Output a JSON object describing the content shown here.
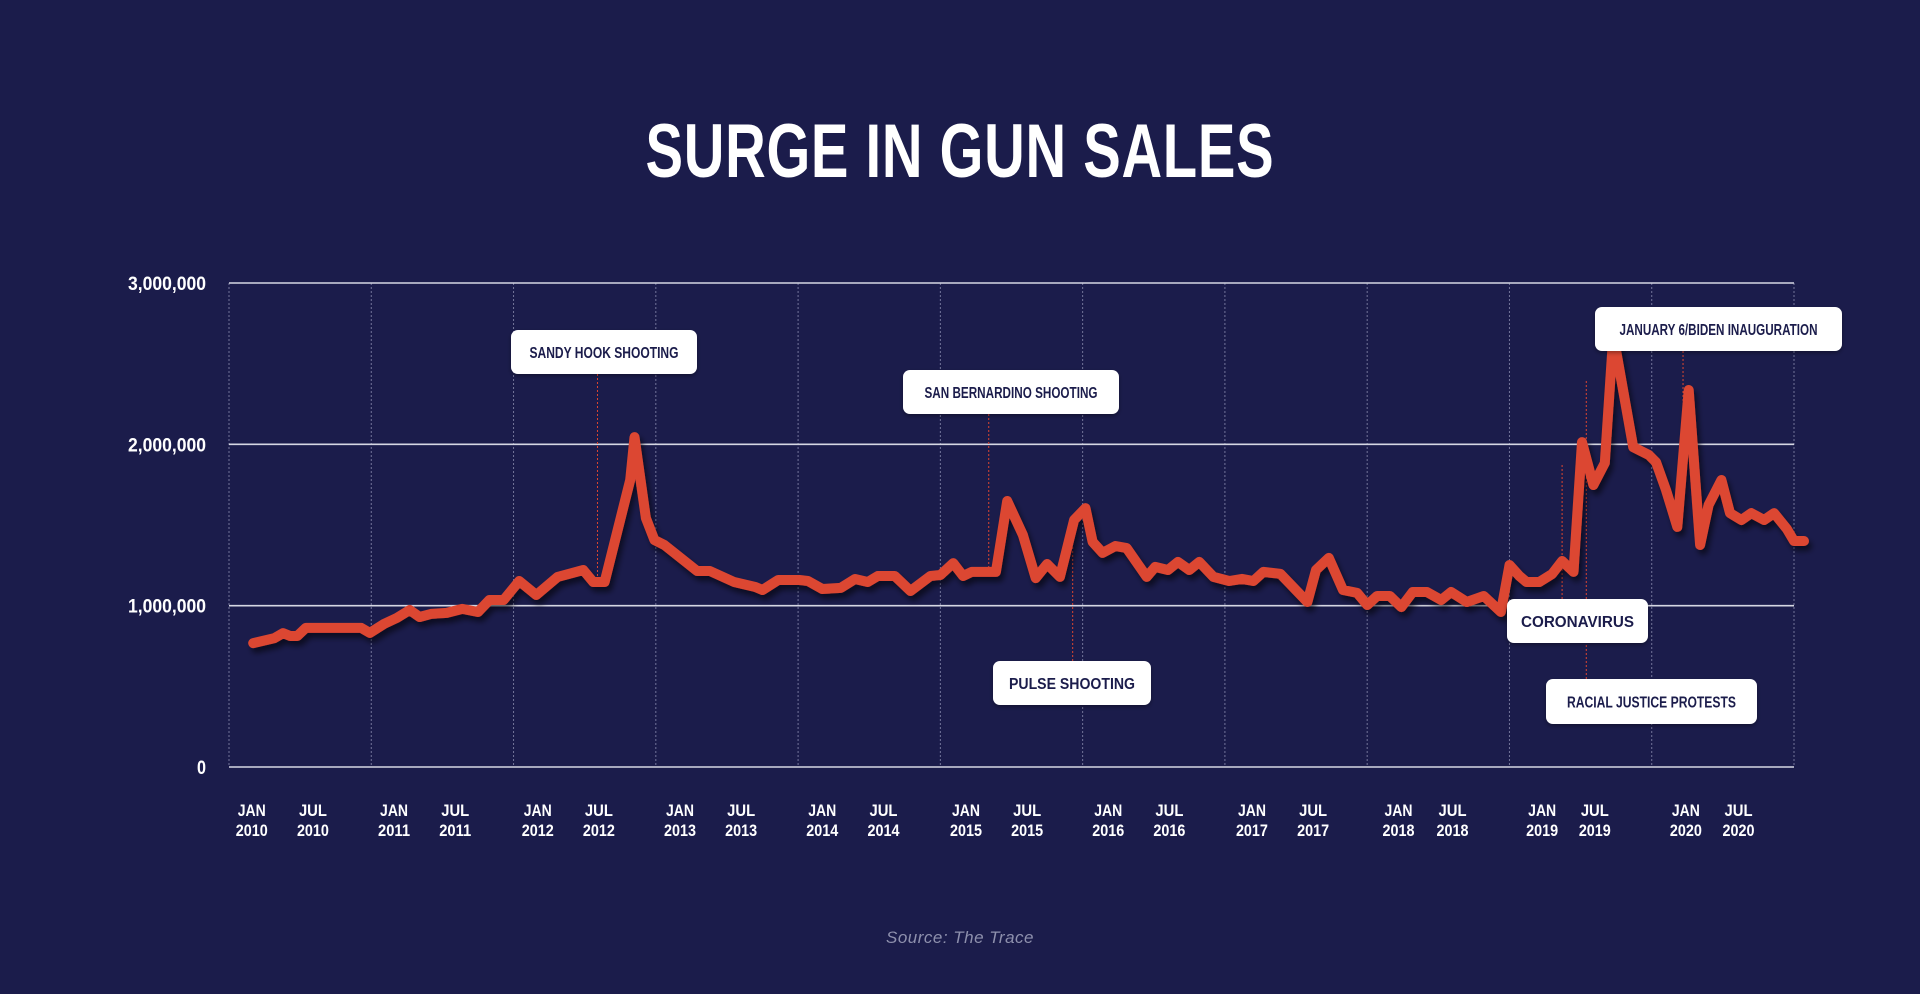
{
  "colors": {
    "background": "#1b1c4b",
    "line": "#dc4630",
    "grid": "#d6d7e3",
    "annotation_leader": "#dc4630",
    "annotation_box": "#ffffff",
    "annotation_text": "#1b1c4b"
  },
  "source": "Source: The Trace",
  "chart_data": {
    "type": "line",
    "title": "SURGE IN GUN SALES",
    "xlabel": "",
    "ylabel": "",
    "ylim": [
      0,
      3000000
    ],
    "xlim": [
      2010.0,
      2021.0
    ],
    "grid": true,
    "y_ticks": [
      {
        "value": 0,
        "label": "0"
      },
      {
        "value": 1000000,
        "label": "1,000,000"
      },
      {
        "value": 2000000,
        "label": "2,000,000"
      },
      {
        "value": 3000000,
        "label": "3,000,000"
      }
    ],
    "x_gridlines": [
      2010,
      2011,
      2012,
      2013,
      2014,
      2015,
      2016,
      2017,
      2018,
      2019,
      2020,
      2021
    ],
    "x_ticks": [
      {
        "pos": 2010.16,
        "month": "JAN",
        "year": "2010"
      },
      {
        "pos": 2010.59,
        "month": "JUL",
        "year": "2010"
      },
      {
        "pos": 2011.16,
        "month": "JAN",
        "year": "2011"
      },
      {
        "pos": 2011.59,
        "month": "JUL",
        "year": "2011"
      },
      {
        "pos": 2012.17,
        "month": "JAN",
        "year": "2012"
      },
      {
        "pos": 2012.6,
        "month": "JUL",
        "year": "2012"
      },
      {
        "pos": 2013.17,
        "month": "JAN",
        "year": "2013"
      },
      {
        "pos": 2013.6,
        "month": "JUL",
        "year": "2013"
      },
      {
        "pos": 2014.17,
        "month": "JAN",
        "year": "2014"
      },
      {
        "pos": 2014.6,
        "month": "JUL",
        "year": "2014"
      },
      {
        "pos": 2015.18,
        "month": "JAN",
        "year": "2015"
      },
      {
        "pos": 2015.61,
        "month": "JUL",
        "year": "2015"
      },
      {
        "pos": 2016.18,
        "month": "JAN",
        "year": "2016"
      },
      {
        "pos": 2016.61,
        "month": "JUL",
        "year": "2016"
      },
      {
        "pos": 2017.19,
        "month": "JAN",
        "year": "2017"
      },
      {
        "pos": 2017.62,
        "month": "JUL",
        "year": "2017"
      },
      {
        "pos": 2018.22,
        "month": "JAN",
        "year": "2018"
      },
      {
        "pos": 2018.6,
        "month": "JUL",
        "year": "2018"
      },
      {
        "pos": 2019.23,
        "month": "JAN",
        "year": "2019"
      },
      {
        "pos": 2019.6,
        "month": "JUL",
        "year": "2019"
      },
      {
        "pos": 2020.24,
        "month": "JAN",
        "year": "2020"
      },
      {
        "pos": 2020.61,
        "month": "JUL",
        "year": "2020"
      }
    ],
    "series": [
      {
        "name": "Gun sales",
        "points": [
          [
            2010.17,
            768000
          ],
          [
            2010.32,
            799000
          ],
          [
            2010.38,
            830000
          ],
          [
            2010.43,
            812000
          ],
          [
            2010.48,
            812000
          ],
          [
            2010.54,
            862000
          ],
          [
            2010.71,
            862000
          ],
          [
            2010.93,
            862000
          ],
          [
            2010.99,
            831000
          ],
          [
            2011.09,
            887000
          ],
          [
            2011.18,
            924000
          ],
          [
            2011.27,
            973000
          ],
          [
            2011.34,
            930000
          ],
          [
            2011.42,
            949000
          ],
          [
            2011.53,
            955000
          ],
          [
            2011.64,
            980000
          ],
          [
            2011.75,
            961000
          ],
          [
            2011.83,
            1035000
          ],
          [
            2011.93,
            1035000
          ],
          [
            2012.04,
            1153000
          ],
          [
            2012.16,
            1066000
          ],
          [
            2012.31,
            1178000
          ],
          [
            2012.49,
            1221000
          ],
          [
            2012.56,
            1147000
          ],
          [
            2012.64,
            1147000
          ],
          [
            2012.82,
            1779000
          ],
          [
            2012.85,
            2045000
          ],
          [
            2012.93,
            1543000
          ],
          [
            2012.99,
            1407000
          ],
          [
            2013.06,
            1376000
          ],
          [
            2013.29,
            1215000
          ],
          [
            2013.38,
            1215000
          ],
          [
            2013.55,
            1147000
          ],
          [
            2013.7,
            1116000
          ],
          [
            2013.75,
            1097000
          ],
          [
            2013.86,
            1159000
          ],
          [
            2014.01,
            1159000
          ],
          [
            2014.07,
            1153000
          ],
          [
            2014.17,
            1103000
          ],
          [
            2014.3,
            1110000
          ],
          [
            2014.4,
            1165000
          ],
          [
            2014.49,
            1147000
          ],
          [
            2014.56,
            1184000
          ],
          [
            2014.68,
            1184000
          ],
          [
            2014.79,
            1091000
          ],
          [
            2014.93,
            1184000
          ],
          [
            2015.0,
            1190000
          ],
          [
            2015.09,
            1264000
          ],
          [
            2015.16,
            1184000
          ],
          [
            2015.22,
            1209000
          ],
          [
            2015.39,
            1209000
          ],
          [
            2015.47,
            1649000
          ],
          [
            2015.58,
            1438000
          ],
          [
            2015.67,
            1171000
          ],
          [
            2015.75,
            1258000
          ],
          [
            2015.84,
            1178000
          ],
          [
            2015.94,
            1531000
          ],
          [
            2016.02,
            1605000
          ],
          [
            2016.07,
            1395000
          ],
          [
            2016.14,
            1327000
          ],
          [
            2016.23,
            1370000
          ],
          [
            2016.31,
            1357000
          ],
          [
            2016.45,
            1178000
          ],
          [
            2016.51,
            1240000
          ],
          [
            2016.6,
            1221000
          ],
          [
            2016.67,
            1271000
          ],
          [
            2016.75,
            1221000
          ],
          [
            2016.82,
            1271000
          ],
          [
            2016.92,
            1178000
          ],
          [
            2017.03,
            1153000
          ],
          [
            2017.12,
            1166000
          ],
          [
            2017.2,
            1153000
          ],
          [
            2017.27,
            1209000
          ],
          [
            2017.39,
            1197000
          ],
          [
            2017.58,
            1023000
          ],
          [
            2017.64,
            1221000
          ],
          [
            2017.73,
            1296000
          ],
          [
            2017.83,
            1097000
          ],
          [
            2017.93,
            1079000
          ],
          [
            2018.0,
            1004000
          ],
          [
            2018.07,
            1060000
          ],
          [
            2018.16,
            1060000
          ],
          [
            2018.24,
            991000
          ],
          [
            2018.32,
            1085000
          ],
          [
            2018.42,
            1085000
          ],
          [
            2018.52,
            1035000
          ],
          [
            2018.59,
            1085000
          ],
          [
            2018.7,
            1023000
          ],
          [
            2018.82,
            1060000
          ],
          [
            2018.94,
            961000
          ],
          [
            2019.0,
            1252000
          ],
          [
            2019.07,
            1184000
          ],
          [
            2019.12,
            1147000
          ],
          [
            2019.21,
            1147000
          ],
          [
            2019.3,
            1196000
          ],
          [
            2019.37,
            1277000
          ],
          [
            2019.45,
            1209000
          ],
          [
            2019.51,
            2014000
          ],
          [
            2019.59,
            1748000
          ],
          [
            2019.67,
            1884000
          ],
          [
            2019.73,
            2678000
          ],
          [
            2019.87,
            1983000
          ],
          [
            2019.98,
            1934000
          ],
          [
            2020.03,
            1890000
          ],
          [
            2020.1,
            1717000
          ],
          [
            2020.18,
            1488000
          ],
          [
            2020.26,
            2337000
          ],
          [
            2020.34,
            1376000
          ],
          [
            2020.4,
            1624000
          ],
          [
            2020.49,
            1779000
          ],
          [
            2020.55,
            1574000
          ],
          [
            2020.63,
            1531000
          ],
          [
            2020.7,
            1574000
          ],
          [
            2020.79,
            1531000
          ],
          [
            2020.86,
            1574000
          ],
          [
            2020.95,
            1475000
          ],
          [
            2021.0,
            1401000
          ],
          [
            2021.07,
            1401000
          ]
        ]
      }
    ],
    "annotations": [
      {
        "label": "SANDY HOOK SHOOTING",
        "x": 2012.59,
        "box_side": "above",
        "leader_to_value": 1150000
      },
      {
        "label": "SAN BERNARDINO SHOOTING",
        "x": 2015.34,
        "box_side": "above",
        "leader_to_value": 1210000
      },
      {
        "label": "PULSE SHOOTING",
        "x": 2015.93,
        "box_side": "below",
        "leader_to_value": 1500000
      },
      {
        "label": "CORONAVIRUS",
        "x": 2019.37,
        "box_side": "below",
        "leader_to_value": 1880000
      },
      {
        "label": "RACIAL JUSTICE PROTESTS",
        "x": 2019.54,
        "box_side": "below",
        "leader_to_value": 2400000
      },
      {
        "label": "JANUARY 6/BIDEN INAUGURATION",
        "x": 2020.22,
        "box_side": "above",
        "leader_to_value": 1780000
      }
    ]
  }
}
